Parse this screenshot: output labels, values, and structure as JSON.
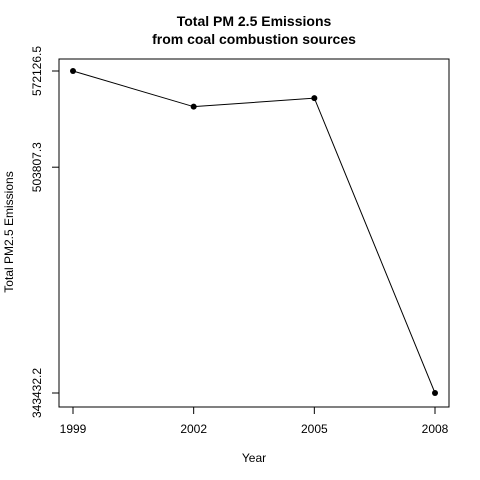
{
  "chart_data": {
    "type": "line",
    "title_lines": [
      "Total PM 2.5 Emissions",
      "from coal combustion sources"
    ],
    "xlabel": "Year",
    "ylabel": "Total PM2.5 Emissions",
    "x": [
      1999,
      2002,
      2005,
      2008
    ],
    "y": [
      572126.5,
      546789.2,
      552881.5,
      343432.2
    ],
    "x_ticks": [
      1999,
      2002,
      2005,
      2008
    ],
    "y_ticks": [
      343432.2,
      503807.3,
      572126.5
    ],
    "y_tick_labels": [
      "343432.2",
      "503807.3",
      "572126.5"
    ],
    "xlim": [
      1999,
      2008
    ],
    "ylim": [
      343432.2,
      572126.5
    ],
    "line_color": "#000000",
    "point_color": "#000000",
    "grid": false,
    "legend": "none"
  }
}
